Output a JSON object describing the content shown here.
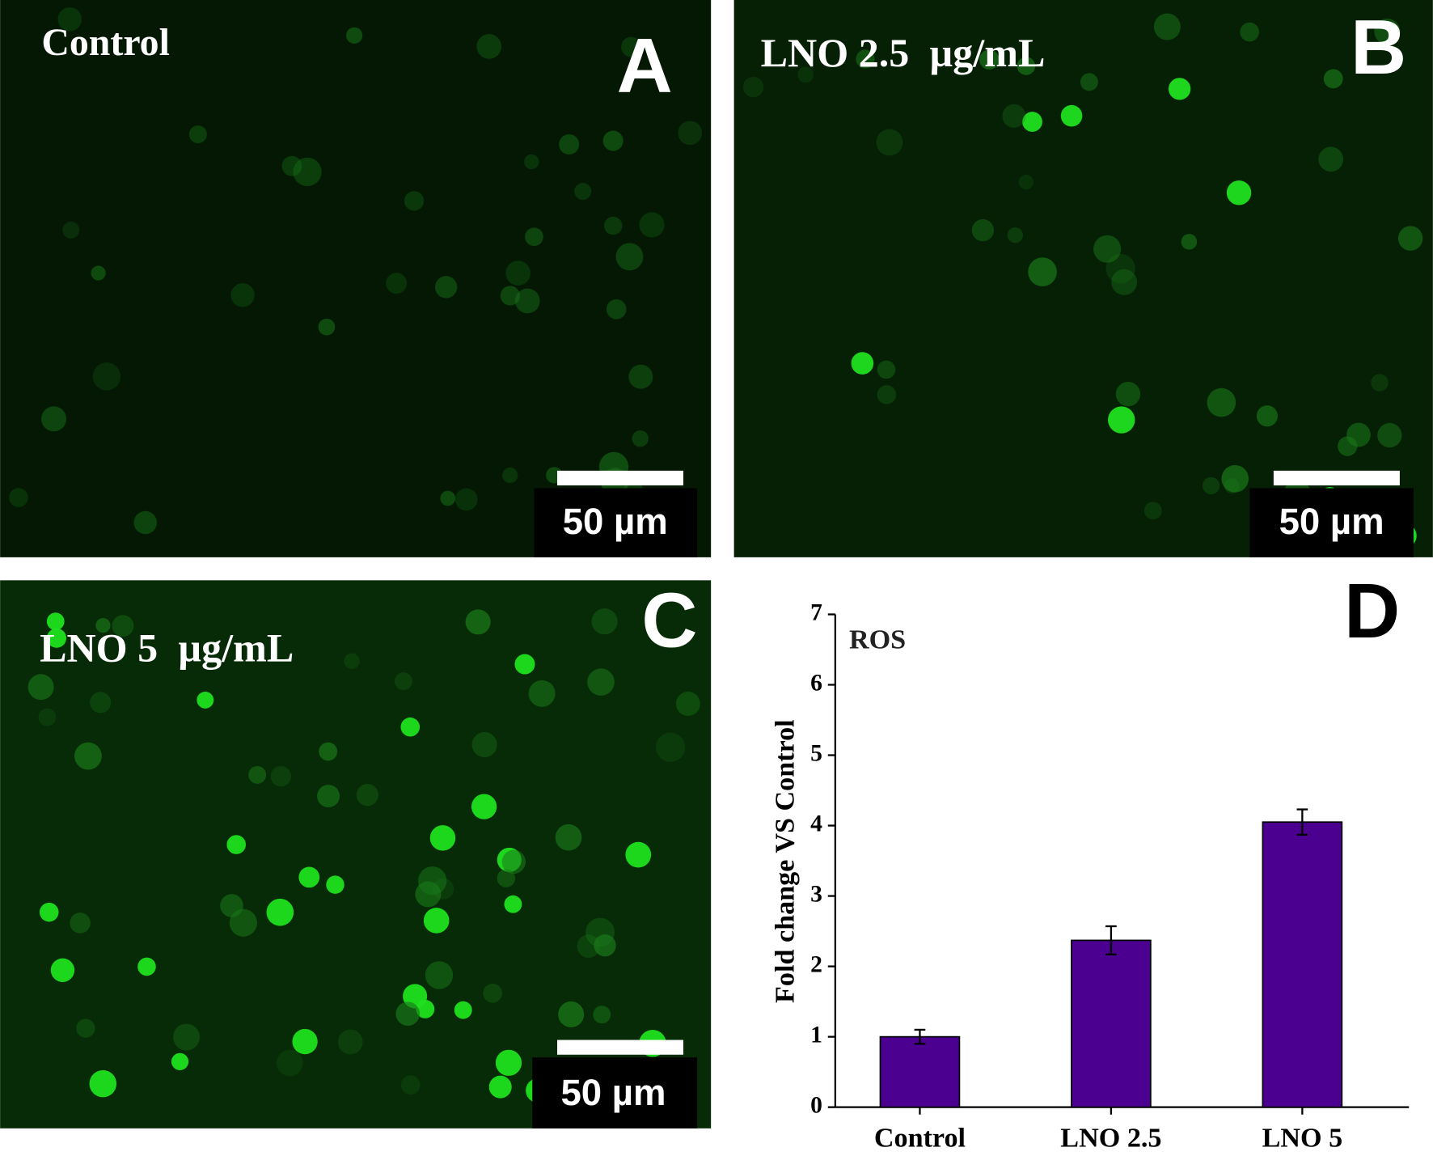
{
  "panels": [
    {
      "letter": "A",
      "label": "Control",
      "scale_bar": "50 µm"
    },
    {
      "letter": "B",
      "label": "LNO 2.5  µg/mL",
      "scale_bar": "50 µm"
    },
    {
      "letter": "C",
      "label": "LNO 5  µg/mL",
      "scale_bar": "50 µm"
    }
  ],
  "chart_data": {
    "type": "bar",
    "panel_label": "D",
    "annotation": "ROS",
    "y_label": "Fold change VS Control",
    "categories": [
      "Control",
      "LNO 2.5",
      "LNO 5"
    ],
    "values": [
      1.0,
      2.37,
      4.05
    ],
    "errors": [
      0.1,
      0.2,
      0.18
    ],
    "color": "#4b0090",
    "ylim": [
      0,
      7
    ],
    "yticks": [
      0,
      1,
      2,
      3,
      4,
      5,
      6,
      7
    ]
  }
}
